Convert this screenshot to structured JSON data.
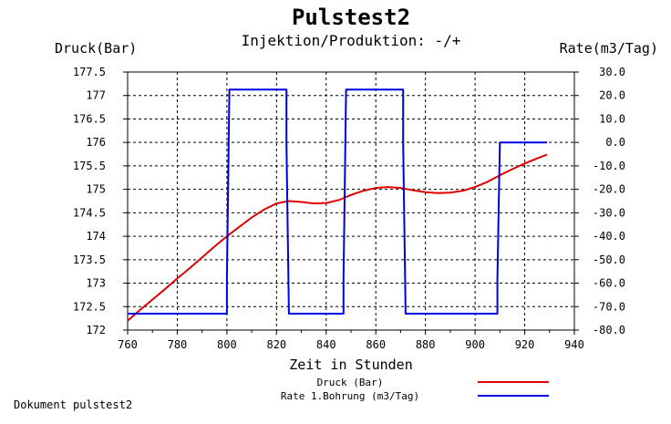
{
  "chart_data": {
    "type": "line",
    "title": "Pulstest2",
    "subtitle": "Injektion/Produktion: -/+",
    "xlabel": "Zeit in Stunden",
    "ylabel_left": "Druck(Bar)",
    "ylabel_right": "Rate(m3/Tag)",
    "xlim": [
      760,
      940
    ],
    "ylim_left": [
      172,
      177.5
    ],
    "ylim_right": [
      -80,
      30
    ],
    "x_ticks": [
      "760",
      "780",
      "800",
      "820",
      "840",
      "860",
      "880",
      "900",
      "920",
      "940"
    ],
    "y_left_ticks": [
      "172",
      "172.5",
      "173",
      "173.5",
      "174",
      "174.5",
      "175",
      "175.5",
      "176",
      "176.5",
      "177",
      "177.5"
    ],
    "y_right_ticks": [
      "-80.0",
      "-70.0",
      "-60.0",
      "-50.0",
      "-40.0",
      "-30.0",
      "-20.0",
      "-10.0",
      "0.0",
      "10.0",
      "20.0",
      "30.0"
    ],
    "grid": true,
    "legend_position": "bottom-right",
    "series": [
      {
        "name": "Druck (Bar)",
        "axis": "left",
        "color": "#e00000",
        "x": [
          760,
          765,
          770,
          775,
          780,
          785,
          790,
          795,
          800,
          805,
          810,
          815,
          820,
          825,
          830,
          835,
          840,
          845,
          850,
          855,
          860,
          865,
          870,
          875,
          880,
          885,
          890,
          895,
          900,
          905,
          910,
          915,
          920,
          925,
          929
        ],
        "y": [
          172.2,
          172.43,
          172.65,
          172.87,
          173.1,
          173.32,
          173.55,
          173.78,
          174.0,
          174.2,
          174.4,
          174.57,
          174.7,
          174.75,
          174.73,
          174.7,
          174.71,
          174.77,
          174.88,
          174.97,
          175.03,
          175.05,
          175.03,
          174.98,
          174.94,
          174.92,
          174.93,
          174.97,
          175.05,
          175.16,
          175.3,
          175.43,
          175.55,
          175.66,
          175.74
        ]
      },
      {
        "name": "Rate 1.Bohrung (m3/Tag)",
        "axis": "right",
        "color": "#0000e0",
        "x": [
          760,
          800,
          800,
          801,
          824,
          824,
          825,
          847,
          847,
          848,
          871,
          871,
          872,
          909,
          909,
          910,
          929
        ],
        "y": [
          -73,
          -73,
          -58,
          22.5,
          22.5,
          0,
          -73,
          -73,
          -58,
          22.5,
          22.5,
          0,
          -73,
          -73,
          -58,
          0,
          0
        ]
      }
    ]
  },
  "footer": "Dokument pulstest2",
  "colors": {
    "background": "#ffffff",
    "grid": "#000000",
    "axis": "#000000"
  }
}
